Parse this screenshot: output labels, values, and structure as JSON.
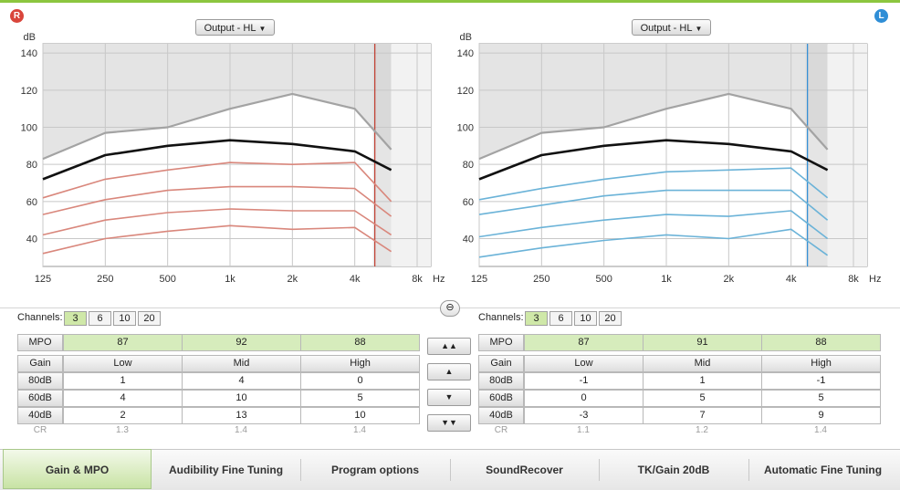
{
  "colors": {
    "accent": "#8cc63f",
    "left_badge": "#2f8ed6",
    "right_badge": "#d9453b",
    "right_curves": "#d9877c",
    "left_curves": "#6bb3d8",
    "target": "#111111",
    "uncomfortable": "#9e9e9e"
  },
  "right_ear": {
    "badge": "R",
    "dropdown": "Output - HL"
  },
  "left_ear": {
    "badge": "L",
    "dropdown": "Output - HL"
  },
  "axis": {
    "y_unit": "dB",
    "y_ticks": [
      "140",
      "120",
      "100",
      "80",
      "60",
      "40"
    ],
    "x_ticks": [
      "125",
      "250",
      "500",
      "1k",
      "2k",
      "4k",
      "8k"
    ],
    "x_unit": "Hz"
  },
  "chart_data": [
    {
      "type": "line",
      "ear": "right",
      "xlabel": "Hz",
      "ylabel": "dB",
      "x_scale": "log",
      "x": [
        125,
        250,
        500,
        1000,
        2000,
        4000,
        6000
      ],
      "ylim": [
        25,
        145
      ],
      "vertical_marker_hz": 5000,
      "series": [
        {
          "values": [
            83,
            97,
            100,
            110,
            118,
            110,
            88
          ]
        },
        {
          "values": [
            72,
            85,
            90,
            93,
            91,
            87,
            77
          ]
        },
        {
          "values": [
            62,
            72,
            77,
            81,
            80,
            81,
            60
          ]
        },
        {
          "values": [
            53,
            61,
            66,
            68,
            68,
            67,
            52
          ]
        },
        {
          "values": [
            42,
            50,
            54,
            56,
            55,
            55,
            42
          ]
        },
        {
          "values": [
            32,
            40,
            44,
            47,
            45,
            46,
            33
          ]
        }
      ]
    },
    {
      "type": "line",
      "ear": "left",
      "xlabel": "Hz",
      "ylabel": "dB",
      "x_scale": "log",
      "x": [
        125,
        250,
        500,
        1000,
        2000,
        4000,
        6000
      ],
      "ylim": [
        25,
        145
      ],
      "vertical_marker_hz": 4800,
      "series": [
        {
          "values": [
            83,
            97,
            100,
            110,
            118,
            110,
            88
          ]
        },
        {
          "values": [
            72,
            85,
            90,
            93,
            91,
            87,
            77
          ]
        },
        {
          "values": [
            61,
            67,
            72,
            76,
            77,
            78,
            62
          ]
        },
        {
          "values": [
            53,
            58,
            63,
            66,
            66,
            66,
            50
          ]
        },
        {
          "values": [
            41,
            46,
            50,
            53,
            52,
            55,
            40
          ]
        },
        {
          "values": [
            30,
            35,
            39,
            42,
            40,
            45,
            31
          ]
        }
      ]
    }
  ],
  "channels": {
    "label": "Channels:",
    "options": [
      "3",
      "6",
      "10",
      "20"
    ],
    "selected": "3"
  },
  "right_table": {
    "mpo_label": "MPO",
    "mpo": [
      "87",
      "92",
      "88"
    ],
    "gain_label": "Gain",
    "bands": [
      "Low",
      "Mid",
      "High"
    ],
    "rows": [
      {
        "label": "80dB",
        "values": [
          "1",
          "4",
          "0"
        ]
      },
      {
        "label": "60dB",
        "values": [
          "4",
          "10",
          "5"
        ]
      },
      {
        "label": "40dB",
        "values": [
          "2",
          "13",
          "10"
        ]
      }
    ],
    "cr_label": "CR",
    "cr": [
      "1.3",
      "1.4",
      "1.4"
    ]
  },
  "left_table": {
    "mpo_label": "MPO",
    "mpo": [
      "87",
      "91",
      "88"
    ],
    "gain_label": "Gain",
    "bands": [
      "Low",
      "Mid",
      "High"
    ],
    "rows": [
      {
        "label": "80dB",
        "values": [
          "-1",
          "1",
          "-1"
        ]
      },
      {
        "label": "60dB",
        "values": [
          "0",
          "5",
          "5"
        ]
      },
      {
        "label": "40dB",
        "values": [
          "-3",
          "7",
          "9"
        ]
      }
    ],
    "cr_label": "CR",
    "cr": [
      "1.1",
      "1.2",
      "1.4"
    ]
  },
  "adjust_buttons": {
    "top": "▲▲",
    "up": "▲",
    "down": "▼",
    "bottom": "▼▼"
  },
  "tabs": [
    "Gain & MPO",
    "Audibility Fine Tuning",
    "Program options",
    "SoundRecover",
    "TK/Gain 20dB",
    "Automatic Fine Tuning"
  ],
  "active_tab": "Gain & MPO"
}
